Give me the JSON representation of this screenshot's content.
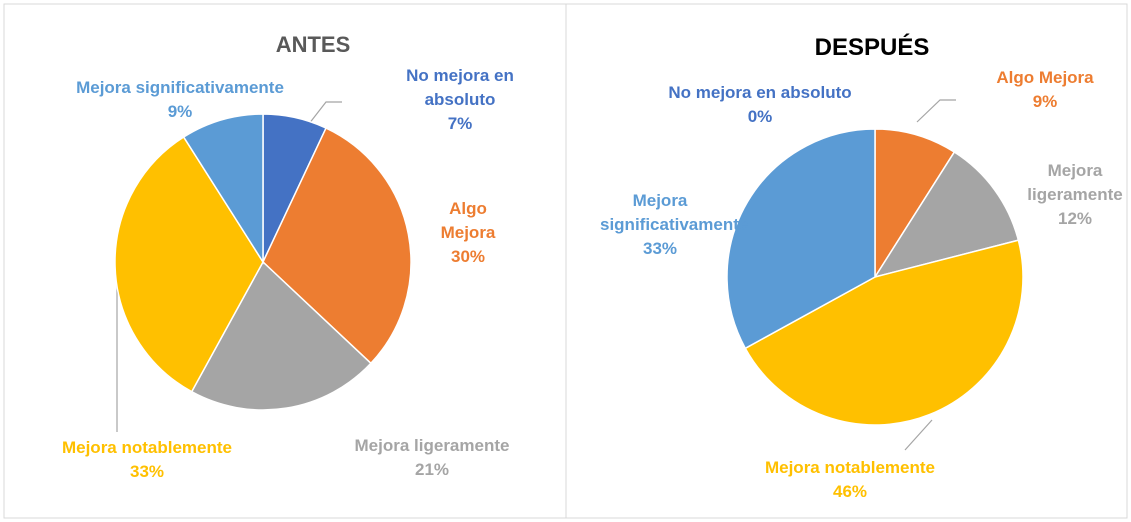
{
  "chart_data": [
    {
      "type": "pie",
      "title": "ANTES",
      "categories": [
        "No mejora en absoluto",
        "Algo Mejora",
        "Mejora ligeramente",
        "Mejora notablemente",
        "Mejora significativamente"
      ],
      "values": [
        7,
        30,
        21,
        33,
        9
      ],
      "value_labels": [
        "7%",
        "30%",
        "21%",
        "33%",
        "9%"
      ],
      "colors": [
        "#4472c4",
        "#ed7d31",
        "#a5a5a5",
        "#ffc000",
        "#5b9bd5"
      ]
    },
    {
      "type": "pie",
      "title": "DESPUÉS",
      "categories": [
        "No mejora en absoluto",
        "Algo Mejora",
        "Mejora ligeramente",
        "Mejora notablemente",
        "Mejora significativamente"
      ],
      "values": [
        0,
        9,
        12,
        46,
        33
      ],
      "value_labels": [
        "0%",
        "9%",
        "12%",
        "46%",
        "33%"
      ],
      "colors": [
        "#4472c4",
        "#ed7d31",
        "#a5a5a5",
        "#ffc000",
        "#5b9bd5"
      ]
    }
  ]
}
